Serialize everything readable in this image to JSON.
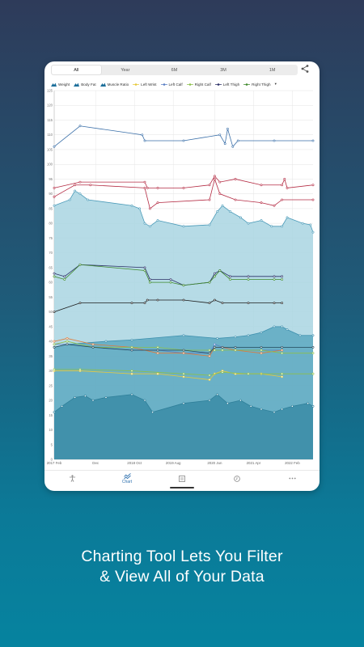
{
  "range_tabs": [
    {
      "label": "All",
      "active": true
    },
    {
      "label": "Year",
      "active": false
    },
    {
      "label": "6M",
      "active": false
    },
    {
      "label": "3M",
      "active": false
    },
    {
      "label": "1M",
      "active": false
    }
  ],
  "share_icon": "share-icon",
  "legend": [
    {
      "label": "Weight",
      "icon": "mountain",
      "color": "#1b6e9a"
    },
    {
      "label": "Body Fat",
      "icon": "mountain",
      "color": "#1b6e9a"
    },
    {
      "label": "Muscle Ratio",
      "icon": "mountain",
      "color": "#1b6e9a"
    },
    {
      "label": "Left Wrist",
      "icon": "dot-line",
      "color": "#e6c93a"
    },
    {
      "label": "Left Calf",
      "icon": "dot-line",
      "color": "#5a7fc4"
    },
    {
      "label": "Right Calf",
      "icon": "dot-line",
      "color": "#8cc04a"
    },
    {
      "label": "Left Thigh",
      "icon": "dot-line",
      "color": "#2b2f66"
    },
    {
      "label": "Right Thigh",
      "icon": "dot-line",
      "color": "#3f8a2c"
    }
  ],
  "legend_more": "▾",
  "chart_data": {
    "type": "line",
    "ylim": [
      0,
      125
    ],
    "yticks": [
      0,
      5,
      10,
      15,
      20,
      25,
      30,
      35,
      40,
      45,
      50,
      55,
      60,
      65,
      70,
      75,
      80,
      85,
      90,
      95,
      100,
      105,
      110,
      115,
      120,
      125
    ],
    "xlim": [
      0,
      1
    ],
    "xticks": [
      {
        "label": "2017 Feb",
        "pos": 0.0
      },
      {
        "label": "Dec",
        "pos": 0.16
      },
      {
        "label": "2018 Oct",
        "pos": 0.31
      },
      {
        "label": "2019 Aug",
        "pos": 0.46
      },
      {
        "label": "2020 Jun",
        "pos": 0.62
      },
      {
        "label": "2021 Apr",
        "pos": 0.77
      },
      {
        "label": "2022 Feb",
        "pos": 0.92
      }
    ],
    "grid": true,
    "series": [
      {
        "name": "Weight",
        "kind": "area",
        "color": "#a9d5e2",
        "line": "#4a9ab8",
        "points": [
          [
            0,
            86
          ],
          [
            0.06,
            88
          ],
          [
            0.08,
            91
          ],
          [
            0.1,
            90
          ],
          [
            0.13,
            88
          ],
          [
            0.3,
            86
          ],
          [
            0.33,
            85
          ],
          [
            0.35,
            80
          ],
          [
            0.37,
            79
          ],
          [
            0.4,
            81
          ],
          [
            0.5,
            79
          ],
          [
            0.6,
            79.5
          ],
          [
            0.63,
            84
          ],
          [
            0.65,
            86
          ],
          [
            0.68,
            84
          ],
          [
            0.72,
            82
          ],
          [
            0.75,
            80
          ],
          [
            0.8,
            81
          ],
          [
            0.84,
            79
          ],
          [
            0.88,
            79
          ],
          [
            0.9,
            82
          ],
          [
            0.96,
            80
          ],
          [
            0.99,
            79.5
          ],
          [
            1,
            77
          ]
        ]
      },
      {
        "name": "Body Fat",
        "kind": "area",
        "color": "#5ea9c1",
        "line": "#3c8fad",
        "points": [
          [
            0,
            38
          ],
          [
            0.05,
            39
          ],
          [
            0.2,
            40
          ],
          [
            0.3,
            40.5
          ],
          [
            0.5,
            42
          ],
          [
            0.63,
            41
          ],
          [
            0.7,
            41.5
          ],
          [
            0.75,
            42
          ],
          [
            0.8,
            43
          ],
          [
            0.85,
            45
          ],
          [
            0.88,
            45
          ],
          [
            0.9,
            44
          ],
          [
            0.95,
            42
          ],
          [
            1,
            42
          ]
        ]
      },
      {
        "name": "Muscle Ratio",
        "kind": "area",
        "color": "#3a8ca6",
        "line": "#2f7f99",
        "points": [
          [
            0,
            16
          ],
          [
            0.03,
            18
          ],
          [
            0.08,
            21
          ],
          [
            0.12,
            21.5
          ],
          [
            0.15,
            20
          ],
          [
            0.2,
            21
          ],
          [
            0.3,
            22
          ],
          [
            0.35,
            20
          ],
          [
            0.38,
            16
          ],
          [
            0.5,
            19
          ],
          [
            0.6,
            20
          ],
          [
            0.63,
            22
          ],
          [
            0.67,
            19
          ],
          [
            0.72,
            20
          ],
          [
            0.76,
            18
          ],
          [
            0.8,
            17
          ],
          [
            0.85,
            16
          ],
          [
            0.88,
            17
          ],
          [
            0.92,
            18
          ],
          [
            0.98,
            19
          ],
          [
            1,
            18
          ]
        ]
      },
      {
        "name": "Weight Line",
        "kind": "line",
        "color": "#3a6fa8",
        "points": [
          [
            0,
            106
          ],
          [
            0.1,
            113
          ],
          [
            0.34,
            110
          ],
          [
            0.35,
            108
          ],
          [
            0.5,
            108
          ],
          [
            0.64,
            110
          ],
          [
            0.66,
            107
          ],
          [
            0.67,
            112
          ],
          [
            0.69,
            106
          ],
          [
            0.71,
            108
          ],
          [
            0.85,
            108
          ],
          [
            1,
            108
          ]
        ]
      },
      {
        "name": "Top Red",
        "kind": "line",
        "color": "#b42b43",
        "points": [
          [
            0,
            92
          ],
          [
            0.1,
            94
          ],
          [
            0.35,
            94
          ],
          [
            0.36,
            92
          ],
          [
            0.4,
            92
          ],
          [
            0.5,
            92
          ],
          [
            0.6,
            93
          ],
          [
            0.62,
            96
          ],
          [
            0.64,
            94
          ],
          [
            0.7,
            95
          ],
          [
            0.8,
            93
          ],
          [
            0.88,
            93
          ],
          [
            0.89,
            95
          ],
          [
            0.9,
            92
          ],
          [
            1,
            93
          ]
        ]
      },
      {
        "name": "Second Red",
        "kind": "line",
        "color": "#b42b43",
        "points": [
          [
            0,
            89
          ],
          [
            0.08,
            93
          ],
          [
            0.14,
            93
          ],
          [
            0.35,
            92
          ],
          [
            0.37,
            85
          ],
          [
            0.4,
            87
          ],
          [
            0.6,
            88
          ],
          [
            0.62,
            95
          ],
          [
            0.64,
            90
          ],
          [
            0.7,
            88
          ],
          [
            0.8,
            87
          ],
          [
            0.85,
            86
          ],
          [
            0.88,
            88
          ],
          [
            1,
            88
          ]
        ]
      },
      {
        "name": "Left Thigh",
        "kind": "line",
        "color": "#2b2f66",
        "points": [
          [
            0,
            63
          ],
          [
            0.04,
            62
          ],
          [
            0.1,
            66
          ],
          [
            0.35,
            65
          ],
          [
            0.37,
            61
          ],
          [
            0.45,
            61
          ],
          [
            0.5,
            59
          ],
          [
            0.6,
            60
          ],
          [
            0.62,
            63
          ],
          [
            0.64,
            64
          ],
          [
            0.68,
            62
          ],
          [
            0.75,
            62
          ],
          [
            0.85,
            62
          ],
          [
            0.88,
            62
          ]
        ]
      },
      {
        "name": "Right Thigh",
        "kind": "line",
        "color": "#3f8a2c",
        "points": [
          [
            0,
            62
          ],
          [
            0.04,
            61
          ],
          [
            0.1,
            66
          ],
          [
            0.35,
            64
          ],
          [
            0.37,
            60
          ],
          [
            0.45,
            60
          ],
          [
            0.5,
            59
          ],
          [
            0.6,
            60
          ],
          [
            0.62,
            62
          ],
          [
            0.64,
            64
          ],
          [
            0.68,
            61
          ],
          [
            0.75,
            61
          ],
          [
            0.85,
            61
          ],
          [
            0.88,
            61
          ]
        ]
      },
      {
        "name": "Black Mid",
        "kind": "line",
        "color": "#1c1c1c",
        "points": [
          [
            0,
            50
          ],
          [
            0.1,
            53
          ],
          [
            0.3,
            53
          ],
          [
            0.35,
            53
          ],
          [
            0.36,
            54
          ],
          [
            0.4,
            54
          ],
          [
            0.5,
            54
          ],
          [
            0.6,
            53
          ],
          [
            0.62,
            54
          ],
          [
            0.65,
            53
          ],
          [
            0.75,
            53
          ],
          [
            0.85,
            53
          ],
          [
            0.88,
            53
          ]
        ]
      },
      {
        "name": "Left Calf",
        "kind": "line",
        "color": "#5a7fc4",
        "points": [
          [
            0,
            39
          ],
          [
            0.05,
            39
          ],
          [
            0.15,
            38
          ],
          [
            0.3,
            37
          ],
          [
            0.4,
            37
          ],
          [
            0.5,
            36
          ],
          [
            0.6,
            36
          ],
          [
            0.62,
            39
          ],
          [
            0.65,
            38
          ],
          [
            0.7,
            37
          ],
          [
            0.8,
            37
          ],
          [
            0.88,
            37
          ]
        ]
      },
      {
        "name": "Orange",
        "kind": "line",
        "color": "#e07a3a",
        "points": [
          [
            0,
            40
          ],
          [
            0.05,
            41
          ],
          [
            0.15,
            39
          ],
          [
            0.3,
            38
          ],
          [
            0.4,
            36
          ],
          [
            0.5,
            36
          ],
          [
            0.6,
            35
          ],
          [
            0.62,
            38
          ],
          [
            0.65,
            38
          ],
          [
            0.7,
            37
          ],
          [
            0.8,
            36
          ],
          [
            0.88,
            37
          ]
        ]
      },
      {
        "name": "Right Calf",
        "kind": "line",
        "color": "#8cc04a",
        "points": [
          [
            0,
            39
          ],
          [
            0.05,
            40
          ],
          [
            0.15,
            38
          ],
          [
            0.3,
            38
          ],
          [
            0.4,
            38
          ],
          [
            0.5,
            37
          ],
          [
            0.6,
            37
          ],
          [
            0.62,
            37
          ],
          [
            0.65,
            37
          ],
          [
            0.7,
            37
          ],
          [
            0.8,
            37
          ],
          [
            0.88,
            36
          ],
          [
            1,
            36
          ]
        ]
      },
      {
        "name": "Dark Teal",
        "kind": "line",
        "color": "#23485a",
        "points": [
          [
            0,
            38
          ],
          [
            0.05,
            39
          ],
          [
            0.15,
            38
          ],
          [
            0.3,
            37
          ],
          [
            0.4,
            37
          ],
          [
            0.5,
            37
          ],
          [
            0.6,
            36
          ],
          [
            0.62,
            38
          ],
          [
            0.65,
            38
          ],
          [
            0.7,
            38
          ],
          [
            0.8,
            38
          ],
          [
            0.88,
            38
          ],
          [
            1,
            38
          ]
        ]
      },
      {
        "name": "Left Wrist",
        "kind": "line",
        "color": "#e6c93a",
        "points": [
          [
            0,
            30
          ],
          [
            0.1,
            30
          ],
          [
            0.3,
            29
          ],
          [
            0.4,
            29
          ],
          [
            0.5,
            28
          ],
          [
            0.6,
            27
          ],
          [
            0.62,
            29
          ],
          [
            0.65,
            30
          ],
          [
            0.7,
            29
          ],
          [
            0.75,
            29
          ],
          [
            0.8,
            29
          ],
          [
            0.88,
            28
          ]
        ]
      },
      {
        "name": "Wrist Green",
        "kind": "line",
        "color": "#8cc04a",
        "points": [
          [
            0,
            30.5
          ],
          [
            0.1,
            30.5
          ],
          [
            0.3,
            30
          ],
          [
            0.5,
            29
          ],
          [
            0.6,
            28.5
          ],
          [
            0.65,
            29.5
          ],
          [
            0.75,
            29
          ],
          [
            0.88,
            29
          ],
          [
            1,
            29
          ]
        ]
      }
    ]
  },
  "bottom_nav": [
    {
      "label": "",
      "icon": "body-icon",
      "active": false
    },
    {
      "label": "Chart",
      "icon": "chart-icon",
      "active": true
    },
    {
      "label": "",
      "icon": "journal-icon",
      "active": false
    },
    {
      "label": "",
      "icon": "history-icon",
      "active": false
    },
    {
      "label": "",
      "icon": "more-icon",
      "active": false
    }
  ],
  "caption": {
    "line1": "Charting Tool Lets You Filter",
    "line2": "& View All of Your Data"
  }
}
